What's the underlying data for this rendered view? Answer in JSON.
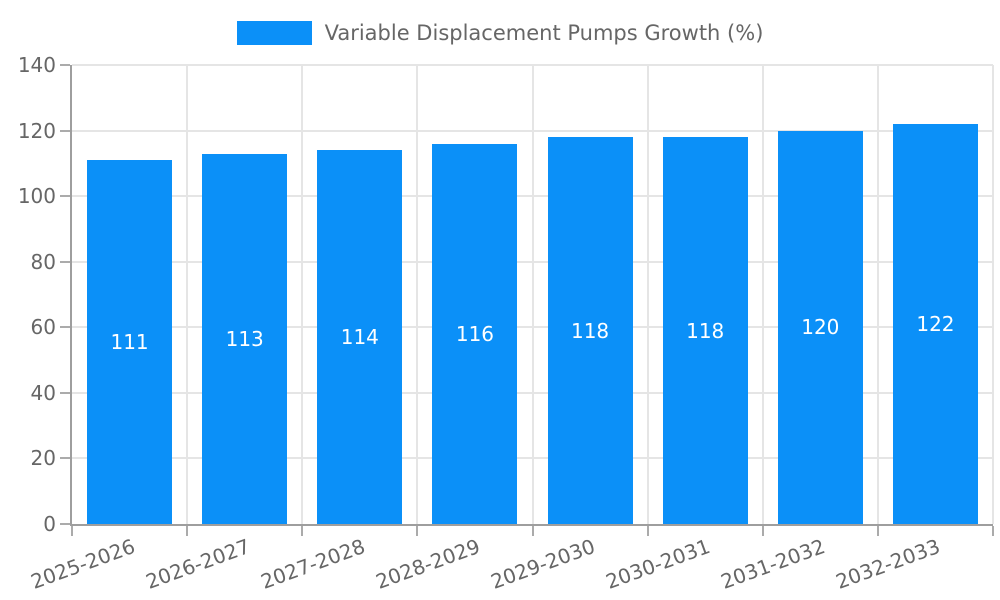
{
  "legend": {
    "series_label": "Variable Displacement Pumps Growth (%)"
  },
  "colors": {
    "bar": "#0b90f8",
    "grid": "#e5e5e5",
    "axis": "#9e9e9e",
    "tick": "#ababab",
    "text": "#666666",
    "value_label": "#ffffff"
  },
  "chart_data": {
    "type": "bar",
    "title": "Variable Displacement Pumps Growth (%)",
    "categories": [
      "2025-2026",
      "2026-2027",
      "2027-2028",
      "2028-2029",
      "2029-2030",
      "2030-2031",
      "2031-2032",
      "2032-2033"
    ],
    "values": [
      111,
      113,
      114,
      116,
      118,
      118,
      120,
      122
    ],
    "xlabel": "",
    "ylabel": "",
    "ylim": [
      0,
      140
    ],
    "yticks": [
      0,
      20,
      40,
      60,
      80,
      100,
      120,
      140
    ],
    "grid": true,
    "legend_position": "top-center",
    "bar_value_labels": true,
    "x_tick_rotation_deg": -20
  }
}
